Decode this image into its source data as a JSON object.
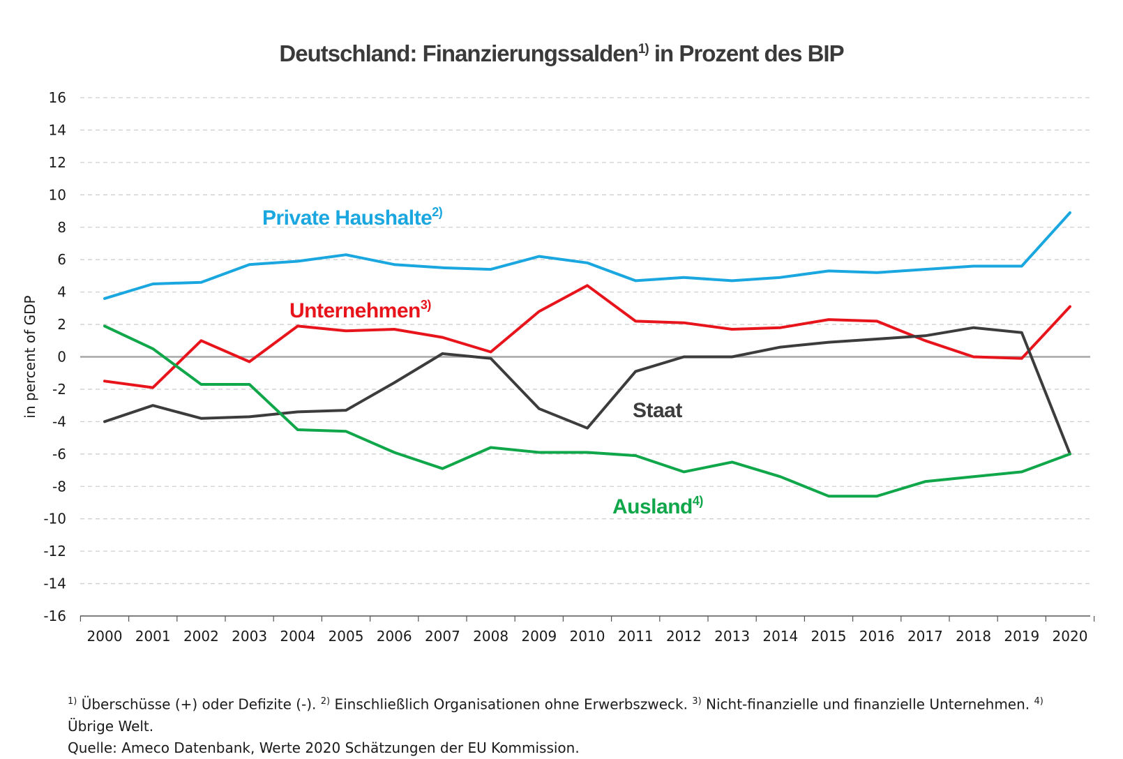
{
  "title": "Deutschland: Finanzierungssalden",
  "title_sup": "1)",
  "title_suffix": " in Prozent des BIP",
  "chart_data": {
    "type": "line",
    "ylabel": "in percent of GDP",
    "ylim": [
      -16,
      16
    ],
    "yticks": [
      16,
      14,
      12,
      10,
      8,
      6,
      4,
      2,
      0,
      -2,
      -4,
      -6,
      -8,
      -10,
      -12,
      -14,
      -16
    ],
    "grid": true,
    "categories": [
      "2000",
      "2001",
      "2002",
      "2003",
      "2004",
      "2005",
      "2006",
      "2007",
      "2008",
      "2009",
      "2010",
      "2011",
      "2012",
      "2013",
      "2014",
      "2015",
      "2016",
      "2017",
      "2018",
      "2019",
      "2020"
    ],
    "series": [
      {
        "name": "Private Haushalte",
        "sup": "2)",
        "color": "#1aa7e0",
        "values": [
          3.6,
          4.5,
          4.6,
          5.7,
          5.9,
          6.3,
          5.7,
          5.5,
          5.4,
          6.2,
          5.8,
          4.7,
          4.9,
          4.7,
          4.9,
          5.3,
          5.2,
          5.4,
          5.6,
          5.6,
          8.9
        ]
      },
      {
        "name": "Unternehmen",
        "sup": "3)",
        "color": "#e8141c",
        "values": [
          -1.5,
          -1.9,
          1.0,
          -0.3,
          1.9,
          1.6,
          1.7,
          1.2,
          0.3,
          2.8,
          4.4,
          2.2,
          2.1,
          1.7,
          1.8,
          2.3,
          2.2,
          1.0,
          0.0,
          -0.1,
          3.1
        ]
      },
      {
        "name": "Staat",
        "sup": "",
        "color": "#3c3c3c",
        "values": [
          -4.0,
          -3.0,
          -3.8,
          -3.7,
          -3.4,
          -3.3,
          -1.6,
          0.2,
          -0.1,
          -3.2,
          -4.4,
          -0.9,
          0.0,
          0.0,
          0.6,
          0.9,
          1.1,
          1.3,
          1.8,
          1.5,
          -6.0
        ]
      },
      {
        "name": "Ausland",
        "sup": "4)",
        "color": "#10a64a",
        "values": [
          1.9,
          0.5,
          -1.7,
          -1.7,
          -4.5,
          -4.6,
          -5.9,
          -6.9,
          -5.6,
          -5.9,
          -5.9,
          -6.1,
          -7.1,
          -6.5,
          -7.4,
          -8.6,
          -8.6,
          -7.7,
          -7.4,
          -7.1,
          -6.0
        ]
      }
    ]
  },
  "footnotes": {
    "line1": [
      {
        "sup": "1)",
        "text": " Überschüsse (+) oder Defizite (-).  "
      },
      {
        "sup": "2)",
        "text": " Einschließlich Organisationen ohne Erwerbszweck. "
      },
      {
        "sup": "3)",
        "text": " Nicht-finanzielle und finanzielle Unternehmen. "
      },
      {
        "sup": "4)",
        "text": ""
      }
    ],
    "line2": "Übrige Welt.",
    "line3": "Quelle: Ameco Datenbank, Werte 2020 Schätzungen der EU Kommission."
  }
}
